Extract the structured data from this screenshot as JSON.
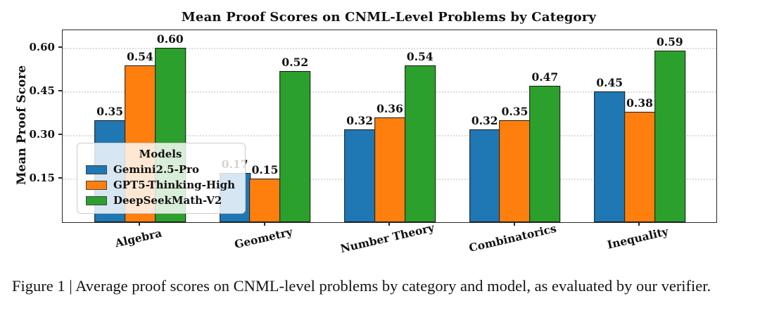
{
  "figure": {
    "caption": "Figure 1 | Average proof scores on CNML-level problems by category and model, as evaluated by our verifier."
  },
  "chart_data": {
    "type": "bar",
    "title": "Mean Proof Scores on CNML-Level Problems by Category",
    "xlabel": "",
    "ylabel": "Mean Proof Score",
    "categories": [
      "Algebra",
      "Geometry",
      "Number Theory",
      "Combinatorics",
      "Inequality"
    ],
    "series": [
      {
        "name": "Gemini2.5-Pro",
        "color": "#1f77b4",
        "values": [
          0.35,
          0.17,
          0.32,
          0.32,
          0.45
        ]
      },
      {
        "name": "GPT5-Thinking-High",
        "color": "#ff7f0e",
        "values": [
          0.54,
          0.15,
          0.36,
          0.35,
          0.38
        ]
      },
      {
        "name": "DeepSeekMath-V2",
        "color": "#2ca02c",
        "values": [
          0.6,
          0.52,
          0.54,
          0.47,
          0.59
        ]
      }
    ],
    "legend": {
      "title": "Models",
      "position": "lower-left"
    },
    "ylim": [
      0,
      0.66
    ],
    "yticks": [
      0.15,
      0.3,
      0.45,
      0.6
    ],
    "grid": true,
    "value_labels": true
  }
}
